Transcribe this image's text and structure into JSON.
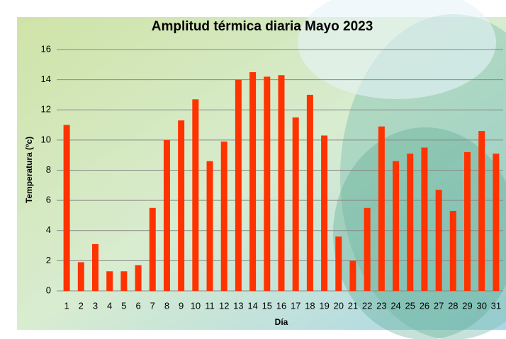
{
  "chart_data": {
    "type": "bar",
    "title": "Amplitud térmica diaria Mayo 2023",
    "x_label": "Día",
    "y_label": "Temperatura (ºc)",
    "categories": [
      "1",
      "2",
      "3",
      "4",
      "5",
      "6",
      "7",
      "8",
      "9",
      "10",
      "11",
      "12",
      "13",
      "14",
      "15",
      "16",
      "17",
      "18",
      "19",
      "20",
      "21",
      "22",
      "23",
      "24",
      "25",
      "26",
      "27",
      "28",
      "29",
      "30",
      "31"
    ],
    "values": [
      11,
      1.9,
      3.1,
      1.3,
      1.3,
      1.7,
      5.5,
      10,
      11.3,
      12.7,
      8.6,
      9.9,
      14,
      14.5,
      14.2,
      14.3,
      11.5,
      13,
      10.3,
      3.6,
      2,
      5.5,
      10.9,
      8.6,
      9.1,
      9.5,
      6.7,
      5.3,
      9.2,
      10.6,
      9.1
    ],
    "color": "#ff3300",
    "ylim": [
      0,
      16
    ],
    "yticks": [
      0,
      2,
      4,
      6,
      8,
      10,
      12,
      14,
      16
    ],
    "grid": true
  }
}
